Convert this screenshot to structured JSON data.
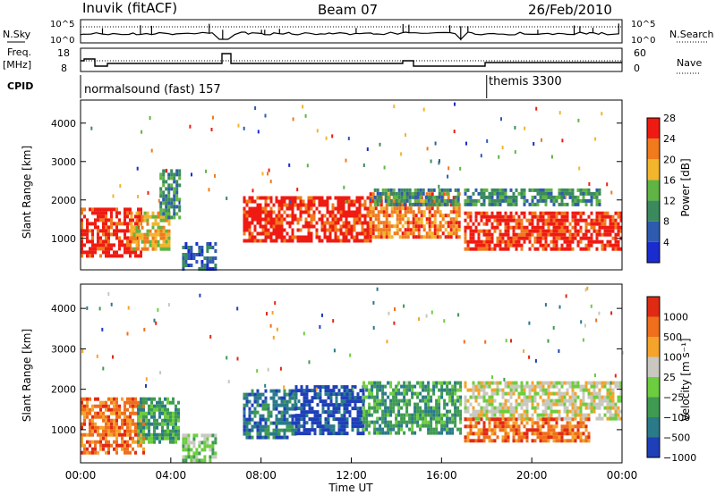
{
  "header": {
    "station": "Inuvik (fitACF)",
    "beam": "Beam 07",
    "date": "26/Feb/2010"
  },
  "strip_panels": {
    "noise": {
      "left_label": "N.Sky",
      "right_label": "N.Search",
      "left_ticks": [
        "10^5",
        "10^0"
      ],
      "right_ticks": [
        "10^5",
        "10^0"
      ]
    },
    "freq": {
      "left_label_line1": "Freq.",
      "left_label_line2": "[MHz]",
      "right_label": "Nave",
      "left_ticks": [
        "18",
        "8"
      ],
      "right_ticks": [
        "60",
        "0"
      ]
    },
    "cpid": {
      "label": "CPID",
      "segments": [
        {
          "name": "normalsound (fast) 157",
          "start_hour": 0
        },
        {
          "name": "themis 3300",
          "start_hour": 18
        }
      ]
    }
  },
  "chart_data": [
    {
      "type": "heatmap",
      "panel": "power",
      "xlabel": "",
      "ylabel": "Slant Range [km]",
      "xlim": [
        0,
        24
      ],
      "ylim": [
        180,
        4600
      ],
      "yticks": [
        1000,
        2000,
        3000,
        4000
      ],
      "colorbar": {
        "label": "Power [dB]",
        "ticks": [
          "4",
          "8",
          "12",
          "16",
          "20",
          "24",
          "28"
        ],
        "colors": [
          "#1a2ccf",
          "#2e5bb0",
          "#3a8a5e",
          "#5fb443",
          "#f2b52c",
          "#f07a1c",
          "#ef1b12"
        ]
      },
      "bands": [
        {
          "t0": 0.0,
          "t1": 2.7,
          "r0": 500,
          "r1": 1800,
          "level": 6
        },
        {
          "t0": 2.2,
          "t1": 3.9,
          "r0": 700,
          "r1": 1700,
          "level": 4
        },
        {
          "t0": 3.5,
          "t1": 4.4,
          "r0": 1500,
          "r1": 2800,
          "level": 2
        },
        {
          "t0": 4.5,
          "t1": 6.0,
          "r0": 200,
          "r1": 900,
          "level": 1
        },
        {
          "t0": 7.2,
          "t1": 12.8,
          "r0": 900,
          "r1": 2100,
          "level": 6
        },
        {
          "t0": 12.8,
          "t1": 16.8,
          "r0": 1000,
          "r1": 2200,
          "level": 5
        },
        {
          "t0": 13.0,
          "t1": 16.8,
          "r0": 1900,
          "r1": 2300,
          "level": 2
        },
        {
          "t0": 17.0,
          "t1": 24.0,
          "r0": 700,
          "r1": 1700,
          "level": 6
        },
        {
          "t0": 17.0,
          "t1": 23.0,
          "r0": 1900,
          "r1": 2300,
          "level": 2
        }
      ]
    },
    {
      "type": "heatmap",
      "panel": "velocity",
      "xlabel": "Time UT",
      "ylabel": "Slant Range [km]",
      "xlim": [
        0,
        24
      ],
      "ylim": [
        180,
        4600
      ],
      "xticks": [
        "00:00",
        "04:00",
        "08:00",
        "12:00",
        "16:00",
        "20:00",
        "00:00"
      ],
      "yticks": [
        1000,
        2000,
        3000,
        4000
      ],
      "colorbar": {
        "label": "Velocity [m s⁻¹]",
        "ticks": [
          "1000",
          "500",
          "100",
          "25",
          "−25",
          "−100",
          "−500",
          "−1000"
        ],
        "colors": [
          "#1e3fb8",
          "#2a7a8a",
          "#3f9a52",
          "#6ccd3e",
          "#c8c8c0",
          "#f5a32a",
          "#f06f1c",
          "#e02a14"
        ]
      },
      "bands": [
        {
          "t0": 0.0,
          "t1": 2.8,
          "r0": 400,
          "r1": 1800,
          "level": 6
        },
        {
          "t0": 2.5,
          "t1": 4.4,
          "r0": 700,
          "r1": 1800,
          "level": 2
        },
        {
          "t0": 4.5,
          "t1": 6.0,
          "r0": 200,
          "r1": 900,
          "level": 3
        },
        {
          "t0": 7.2,
          "t1": 9.5,
          "r0": 800,
          "r1": 2000,
          "level": 1
        },
        {
          "t0": 9.5,
          "t1": 12.5,
          "r0": 900,
          "r1": 2100,
          "level": 0
        },
        {
          "t0": 12.5,
          "t1": 16.8,
          "r0": 900,
          "r1": 2200,
          "level": 2
        },
        {
          "t0": 17.0,
          "t1": 24.0,
          "r0": 1300,
          "r1": 2200,
          "level": 4
        },
        {
          "t0": 17.0,
          "t1": 22.5,
          "r0": 700,
          "r1": 1300,
          "level": 6
        }
      ]
    }
  ]
}
